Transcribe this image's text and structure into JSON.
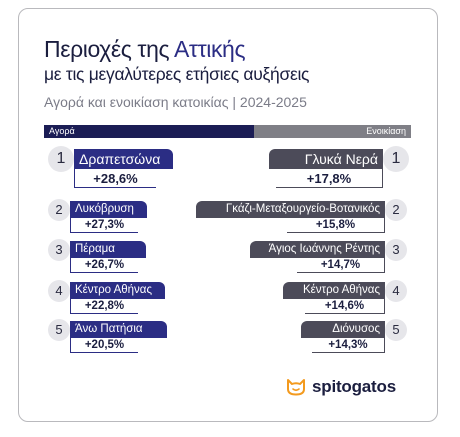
{
  "title": {
    "line1_plain": "Περιοχές της",
    "line1_accent": "Αττικής",
    "line2": "με τις μεγαλύτερες ετήσιες αυξήσεις"
  },
  "caption": "Αγορά και ενοικίαση κατοικίας | 2024-2025",
  "headers": {
    "left": "Αγορά",
    "right": "Ενοικίαση"
  },
  "purchase": [
    {
      "rank": "1",
      "area": "Δραπετσώνα",
      "change": "+28,6%"
    },
    {
      "rank": "2",
      "area": "Λυκόβρυση",
      "change": "+27,3%"
    },
    {
      "rank": "3",
      "area": "Πέραμα",
      "change": "+26,7%"
    },
    {
      "rank": "4",
      "area": "Κέντρο Αθήνας",
      "change": "+22,8%"
    },
    {
      "rank": "5",
      "area": "Άνω Πατήσια",
      "change": "+20,5%"
    }
  ],
  "rent": [
    {
      "rank": "1",
      "area": "Γλυκά Νερά",
      "change": "+17,8%"
    },
    {
      "rank": "2",
      "area": "Γκάζι-Μεταξουργείο-Βοτανικός",
      "change": "+15,8%"
    },
    {
      "rank": "3",
      "area": "Άγιος Ιωάννης Ρέντης",
      "change": "+14,7%"
    },
    {
      "rank": "4",
      "area": "Κέντρο Αθήνας",
      "change": "+14,6%"
    },
    {
      "rank": "5",
      "area": "Διόνυσος",
      "change": "+14,3%"
    }
  ],
  "brand": {
    "name": "spitogatos",
    "icon": "cat-icon",
    "icon_color": "#f39a1e"
  },
  "colors": {
    "purchase_accent": "#2b2d84",
    "rent_accent": "#4c4b59",
    "header_dark": "#1b1d55",
    "header_grey": "#7f7f86"
  }
}
